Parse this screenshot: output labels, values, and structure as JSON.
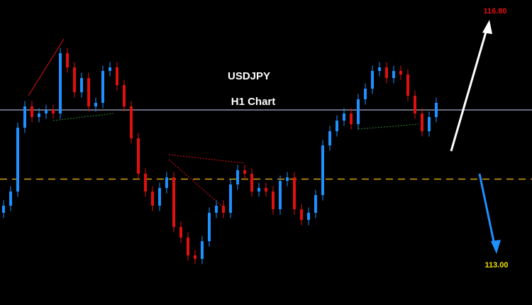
{
  "chart_data": {
    "type": "candlestick",
    "title": "USDJPY",
    "subtitle": "H1 Chart",
    "annotations": [
      "116.80",
      "113.00"
    ],
    "up_color": "#1e90ff",
    "down_color": "#e01010",
    "ylim": [
      114.28,
      116.0
    ],
    "reference_lines": [
      {
        "value": 115.38,
        "color": "#8a8fa8",
        "style": "solid"
      },
      {
        "value": 114.99,
        "color": "#d4a017",
        "style": "dashed"
      }
    ],
    "open": [
      114.8,
      114.84,
      114.92,
      115.28,
      115.4,
      115.34,
      115.36,
      115.38,
      115.36,
      115.7,
      115.62,
      115.48,
      115.56,
      115.4,
      115.42,
      115.6,
      115.62,
      115.52,
      115.4,
      115.22,
      115.02,
      114.92,
      114.84,
      114.94,
      115.0,
      114.72,
      114.66,
      114.56,
      114.54,
      114.64,
      114.8,
      114.84,
      114.8,
      114.96,
      115.04,
      115.02,
      114.92,
      114.94,
      114.92,
      114.82,
      114.98,
      115.0,
      114.82,
      114.76,
      114.8,
      114.9,
      115.18,
      115.26,
      115.32,
      115.36,
      115.3,
      115.44,
      115.5,
      115.6,
      115.62,
      115.56,
      115.6,
      115.58,
      115.46,
      115.36,
      115.26,
      115.34
    ],
    "high": [
      114.87,
      114.95,
      115.31,
      115.43,
      115.43,
      115.39,
      115.41,
      115.41,
      115.73,
      115.73,
      115.65,
      115.59,
      115.59,
      115.45,
      115.63,
      115.65,
      115.65,
      115.55,
      115.43,
      115.25,
      115.05,
      114.95,
      114.97,
      115.03,
      115.03,
      114.75,
      114.69,
      114.59,
      114.67,
      114.83,
      114.87,
      114.87,
      114.99,
      115.07,
      115.07,
      115.05,
      114.97,
      114.97,
      114.95,
      115.01,
      115.03,
      115.03,
      114.85,
      114.83,
      114.93,
      115.21,
      115.29,
      115.35,
      115.39,
      115.39,
      115.47,
      115.53,
      115.63,
      115.65,
      115.65,
      115.63,
      115.63,
      115.61,
      115.49,
      115.39,
      115.37,
      115.45
    ],
    "low": [
      114.77,
      114.81,
      114.89,
      115.25,
      115.31,
      115.31,
      115.33,
      115.33,
      115.33,
      115.59,
      115.45,
      115.45,
      115.37,
      115.37,
      115.39,
      115.57,
      115.49,
      115.37,
      115.19,
      114.99,
      114.89,
      114.81,
      114.81,
      114.91,
      114.69,
      114.63,
      114.53,
      114.51,
      114.51,
      114.61,
      114.77,
      114.77,
      114.77,
      114.93,
      114.99,
      114.89,
      114.89,
      114.89,
      114.79,
      114.79,
      114.95,
      114.79,
      114.73,
      114.73,
      114.77,
      114.87,
      115.15,
      115.23,
      115.29,
      115.27,
      115.27,
      115.41,
      115.47,
      115.57,
      115.53,
      115.53,
      115.55,
      115.43,
      115.33,
      115.23,
      115.23,
      115.31
    ],
    "close": [
      114.84,
      114.92,
      115.28,
      115.4,
      115.34,
      115.36,
      115.38,
      115.36,
      115.7,
      115.62,
      115.48,
      115.56,
      115.4,
      115.42,
      115.6,
      115.62,
      115.52,
      115.4,
      115.22,
      115.02,
      114.92,
      114.84,
      114.94,
      115.0,
      114.72,
      114.66,
      114.56,
      114.54,
      114.64,
      114.8,
      114.84,
      114.8,
      114.96,
      115.04,
      115.02,
      114.92,
      114.94,
      114.92,
      114.82,
      114.98,
      115.0,
      114.82,
      114.76,
      114.8,
      114.9,
      115.18,
      115.26,
      115.32,
      115.36,
      115.3,
      115.44,
      115.5,
      115.6,
      115.62,
      115.56,
      115.6,
      115.58,
      115.46,
      115.36,
      115.26,
      115.34,
      115.42
    ]
  }
}
